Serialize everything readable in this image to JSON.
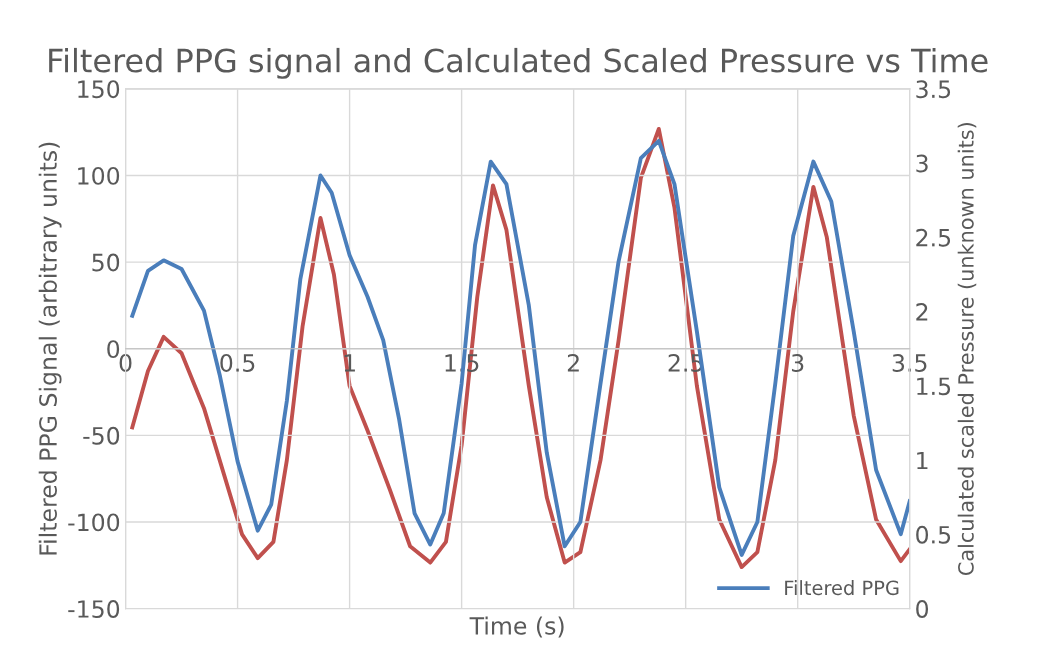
{
  "chart_data": {
    "type": "line",
    "title": "Filtered PPG signal and Calculated Scaled Pressure vs Time",
    "xlabel": "Time (s)",
    "ylabel": "Filtered PPG Signal (arbitrary units)",
    "y2label": "Calculated scaled Pressure (unknown units)",
    "xlim": [
      0,
      3.5
    ],
    "xticks": [
      0,
      0.5,
      1,
      1.5,
      2,
      2.5,
      3,
      3.5
    ],
    "ylim": [
      -150,
      150
    ],
    "yticks": [
      -150,
      -100,
      -50,
      0,
      50,
      100,
      150
    ],
    "y2lim": [
      0,
      3.5
    ],
    "y2ticks": [
      0,
      0.5,
      1,
      1.5,
      2,
      2.5,
      3,
      3.5
    ],
    "grid": true,
    "legend": "bottom right",
    "marker": "none",
    "line_style": "solid",
    "series": [
      {
        "name": "Filtered PPG",
        "color": "#4a7ebb",
        "x": [
          0.03,
          0.1,
          0.17,
          0.25,
          0.35,
          0.42,
          0.5,
          0.59,
          0.65,
          0.72,
          0.78,
          0.87,
          0.92,
          1.0,
          1.08,
          1.15,
          1.22,
          1.29,
          1.36,
          1.42,
          1.5,
          1.56,
          1.63,
          1.7,
          1.8,
          1.88,
          1.96,
          2.03,
          2.12,
          2.2,
          2.3,
          2.38,
          2.45,
          2.55,
          2.65,
          2.75,
          2.82,
          2.9,
          2.98,
          3.07,
          3.15,
          3.25,
          3.35,
          3.46,
          3.5
        ],
        "values": [
          19,
          45,
          51,
          46,
          22,
          -15,
          -65,
          -105,
          -90,
          -30,
          40,
          100,
          90,
          54,
          30,
          5,
          -40,
          -95,
          -113,
          -95,
          -20,
          60,
          108,
          95,
          25,
          -60,
          -114,
          -100,
          -20,
          50,
          110,
          120,
          95,
          10,
          -80,
          -119,
          -100,
          -20,
          65,
          108,
          85,
          10,
          -70,
          -107,
          -88
        ]
      },
      {
        "color": "#c0504d",
        "axis": "y2",
        "x": [
          0.03,
          0.1,
          0.17,
          0.25,
          0.35,
          0.45,
          0.52,
          0.59,
          0.66,
          0.72,
          0.79,
          0.87,
          0.93,
          1.0,
          1.08,
          1.18,
          1.27,
          1.36,
          1.43,
          1.5,
          1.57,
          1.64,
          1.7,
          1.8,
          1.88,
          1.96,
          2.03,
          2.12,
          2.2,
          2.3,
          2.38,
          2.45,
          2.55,
          2.65,
          2.75,
          2.82,
          2.9,
          2.98,
          3.07,
          3.13,
          3.25,
          3.35,
          3.46,
          3.5
        ],
        "values": [
          1.22,
          1.6,
          1.83,
          1.72,
          1.35,
          0.85,
          0.5,
          0.34,
          0.45,
          1.0,
          1.9,
          2.63,
          2.25,
          1.5,
          1.2,
          0.8,
          0.42,
          0.31,
          0.45,
          1.1,
          2.1,
          2.85,
          2.55,
          1.5,
          0.75,
          0.31,
          0.38,
          1.0,
          1.8,
          2.9,
          3.23,
          2.7,
          1.5,
          0.6,
          0.28,
          0.38,
          1.0,
          2.0,
          2.84,
          2.5,
          1.3,
          0.6,
          0.32,
          0.4
        ]
      }
    ]
  }
}
